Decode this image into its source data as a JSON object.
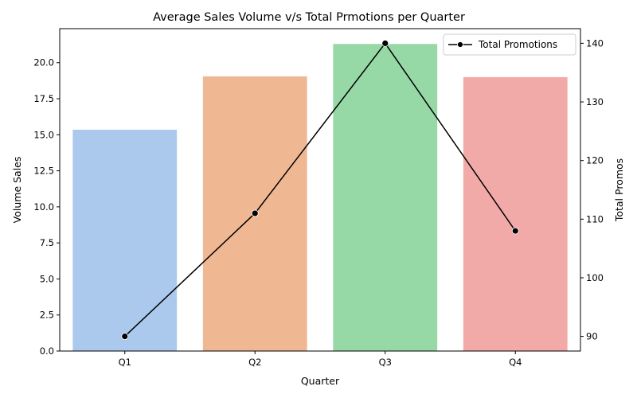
{
  "chart_data": {
    "type": "bar",
    "title": "Average Sales Volume v/s Total Prmotions per Quarter",
    "xlabel": "Quarter",
    "ylabel": "Volume Sales",
    "ylabel_right": "Total Promos",
    "categories": [
      "Q1",
      "Q2",
      "Q3",
      "Q4"
    ],
    "bar_colors": [
      "#abc9ec",
      "#f0b793",
      "#97d9a6",
      "#f2aaa9"
    ],
    "series": [
      {
        "type": "bar",
        "axis": "left",
        "values": [
          15.35,
          19.05,
          21.3,
          19.0
        ]
      },
      {
        "type": "line",
        "axis": "right",
        "name": "Total Promotions",
        "color": "#000000",
        "marker": "circle",
        "values": [
          90,
          111,
          140,
          108
        ]
      }
    ],
    "ylim": [
      0,
      22.36
    ],
    "ylim_right": [
      87.5,
      142.5
    ],
    "yticks": [
      0.0,
      2.5,
      5.0,
      7.5,
      10.0,
      12.5,
      15.0,
      17.5,
      20.0
    ],
    "yticks_labels": [
      "0.0",
      "2.5",
      "5.0",
      "7.5",
      "10.0",
      "12.5",
      "15.0",
      "17.5",
      "20.0"
    ],
    "yticks_right": [
      90,
      100,
      110,
      120,
      130,
      140
    ],
    "yticks_right_labels": [
      "90",
      "100",
      "110",
      "120",
      "130",
      "140"
    ],
    "legend": {
      "placement": "top-right",
      "entries": [
        "Total Promotions"
      ]
    },
    "grid": false
  }
}
